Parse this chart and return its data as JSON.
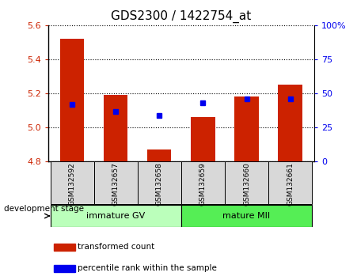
{
  "title": "GDS2300 / 1422754_at",
  "samples": [
    "GSM132592",
    "GSM132657",
    "GSM132658",
    "GSM132659",
    "GSM132660",
    "GSM132661"
  ],
  "bar_values": [
    5.52,
    5.19,
    4.87,
    5.06,
    5.18,
    5.25
  ],
  "bar_base": 4.8,
  "percentile_values": [
    5.135,
    5.09,
    5.07,
    5.145,
    5.165,
    5.165
  ],
  "ylim": [
    4.8,
    5.6
  ],
  "yticks_left": [
    4.8,
    5.0,
    5.2,
    5.4,
    5.6
  ],
  "yticks_right": [
    0,
    25,
    50,
    75,
    100
  ],
  "bar_color": "#cc2200",
  "percentile_color": "#0000ee",
  "group1_label": "immature GV",
  "group2_label": "mature MII",
  "group1_color": "#bbffbb",
  "group2_color": "#55ee55",
  "group1_indices": [
    0,
    1,
    2
  ],
  "group2_indices": [
    3,
    4,
    5
  ],
  "legend_bar_label": "transformed count",
  "legend_pct_label": "percentile rank within the sample",
  "dev_stage_label": "development stage",
  "tick_label_color_left": "#cc2200",
  "tick_label_color_right": "#0000ee",
  "bar_width": 0.55,
  "grid_style": "dotted",
  "grid_color": "black",
  "sample_box_color": "#d8d8d8",
  "title_fontsize": 11,
  "tick_fontsize": 8,
  "sample_fontsize": 6.5,
  "group_fontsize": 8,
  "legend_fontsize": 7.5
}
